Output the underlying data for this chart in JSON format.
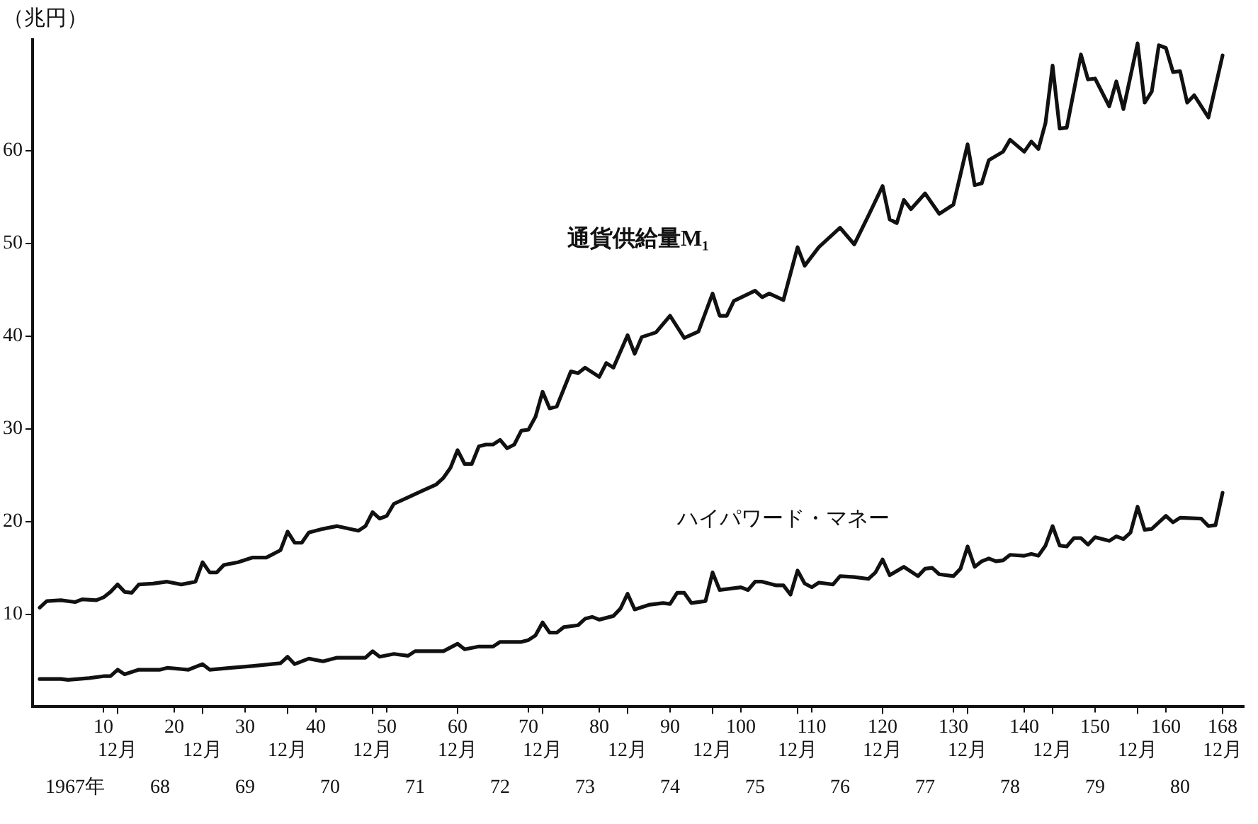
{
  "chart_data": {
    "type": "line",
    "ylabel": "（兆円）",
    "xlim": [
      0,
      171
    ],
    "ylim": [
      0,
      72
    ],
    "xticks": [
      10,
      20,
      30,
      40,
      50,
      60,
      70,
      80,
      90,
      100,
      110,
      120,
      130,
      140,
      150,
      160,
      168
    ],
    "x2lim": [
      "1966-12",
      "1981-03"
    ],
    "x2ticks": [
      {
        "value": "1967-12",
        "label": "12月"
      },
      {
        "value": "1968-12",
        "label": "12月"
      },
      {
        "value": "1969-12",
        "label": "12月"
      },
      {
        "value": "1970-12",
        "label": "12月"
      },
      {
        "value": "1971-12",
        "label": "12月"
      },
      {
        "value": "1972-12",
        "label": "12月"
      },
      {
        "value": "1973-12",
        "label": "12月"
      },
      {
        "value": "1974-12",
        "label": "12月"
      },
      {
        "value": "1975-12",
        "label": "12月"
      },
      {
        "value": "1976-12",
        "label": "12月"
      },
      {
        "value": "1977-12",
        "label": "12月"
      },
      {
        "value": "1978-12",
        "label": "12月"
      },
      {
        "value": "1979-12",
        "label": "12月"
      },
      {
        "value": "1980-12",
        "label": "12月"
      }
    ],
    "annotations": [
      "1967年",
      "68",
      "69",
      "70",
      "71",
      "72",
      "73",
      "74",
      "75",
      "76",
      "77",
      "78",
      "79",
      "80"
    ],
    "yticks": [
      10,
      20,
      30,
      40,
      50,
      60
    ],
    "grid": false,
    "legend": false,
    "marker": "none",
    "line_style": "solid",
    "series": [
      {
        "name": "通貨供給量M₁",
        "color": "#111111",
        "x": [
          1,
          2,
          4,
          6,
          7,
          9,
          10,
          11,
          12,
          13,
          14,
          15,
          17,
          19,
          21,
          23,
          24,
          25,
          26,
          27,
          29,
          31,
          33,
          35,
          36,
          37,
          38,
          39,
          41,
          43,
          46,
          47,
          48,
          49,
          50,
          51,
          53,
          55,
          57,
          58,
          59,
          60,
          61,
          62,
          63,
          64,
          65,
          66,
          67,
          68,
          69,
          70,
          71,
          72,
          73,
          74,
          76,
          77,
          78,
          80,
          81,
          82,
          84,
          85,
          86,
          88,
          90,
          92,
          94,
          96,
          97,
          98,
          99,
          102,
          103,
          104,
          106,
          108,
          109,
          111,
          114,
          116,
          118,
          120,
          121,
          122,
          123,
          124,
          126,
          128,
          130,
          132,
          133,
          134,
          135,
          137,
          138,
          140,
          141,
          142,
          143,
          144,
          145,
          146,
          148,
          149,
          150,
          152,
          153,
          154,
          156,
          157,
          158,
          159,
          160,
          161,
          162,
          163,
          164,
          166,
          168
        ],
        "values": [
          10.7,
          11.4,
          11.5,
          11.3,
          11.6,
          11.5,
          11.8,
          12.4,
          13.2,
          12.4,
          12.3,
          13.2,
          13.3,
          13.5,
          13.2,
          13.5,
          15.6,
          14.5,
          14.5,
          15.3,
          15.6,
          16.1,
          16.1,
          16.9,
          18.9,
          17.7,
          17.7,
          18.8,
          19.2,
          19.5,
          19.0,
          19.5,
          21.0,
          20.3,
          20.6,
          21.9,
          22.6,
          23.3,
          24.0,
          24.7,
          25.8,
          27.7,
          26.2,
          26.2,
          28.1,
          28.3,
          28.3,
          28.8,
          27.9,
          28.3,
          29.8,
          29.9,
          31.3,
          34.0,
          32.2,
          32.4,
          36.2,
          36.0,
          36.6,
          35.6,
          37.1,
          36.6,
          40.1,
          38.1,
          39.9,
          40.4,
          42.2,
          39.8,
          40.5,
          44.6,
          42.2,
          42.2,
          43.8,
          44.9,
          44.2,
          44.6,
          43.9,
          49.6,
          47.6,
          49.6,
          51.7,
          49.9,
          53.0,
          56.2,
          52.6,
          52.2,
          54.7,
          53.7,
          55.4,
          53.2,
          54.2,
          60.7,
          56.3,
          56.5,
          59.0,
          59.9,
          61.2,
          59.9,
          61.0,
          60.2,
          63.0,
          69.2,
          62.4,
          62.5,
          70.4,
          67.7,
          67.8,
          64.8,
          67.5,
          64.5,
          71.6,
          65.2,
          66.4,
          71.4,
          71.1,
          68.5,
          68.6,
          65.2,
          66.0,
          63.6,
          70.3
        ]
      },
      {
        "name": "ハイパワード・マネー",
        "color": "#111111",
        "x": [
          1,
          4,
          5,
          8,
          10,
          11,
          12,
          13,
          15,
          18,
          19,
          22,
          24,
          25,
          28,
          31,
          35,
          36,
          37,
          39,
          41,
          43,
          47,
          48,
          49,
          51,
          53,
          54,
          58,
          60,
          61,
          63,
          65,
          66,
          69,
          70,
          71,
          72,
          73,
          74,
          75,
          77,
          78,
          79,
          80,
          82,
          83,
          84,
          85,
          87,
          89,
          90,
          91,
          92,
          93,
          95,
          96,
          97,
          100,
          101,
          102,
          103,
          105,
          106,
          107,
          108,
          109,
          110,
          111,
          113,
          114,
          116,
          118,
          119,
          120,
          121,
          123,
          125,
          126,
          127,
          128,
          130,
          131,
          132,
          133,
          134,
          135,
          136,
          137,
          138,
          140,
          141,
          142,
          143,
          144,
          145,
          146,
          147,
          148,
          149,
          150,
          152,
          153,
          154,
          155,
          156,
          157,
          158,
          159,
          160,
          161,
          162,
          165,
          166,
          167,
          168
        ],
        "values": [
          3.0,
          3.0,
          2.9,
          3.1,
          3.3,
          3.3,
          4.0,
          3.5,
          4.0,
          4.0,
          4.2,
          4.0,
          4.6,
          4.0,
          4.2,
          4.4,
          4.7,
          5.4,
          4.6,
          5.2,
          4.9,
          5.3,
          5.3,
          6.0,
          5.4,
          5.7,
          5.5,
          6.0,
          6.0,
          6.8,
          6.2,
          6.5,
          6.5,
          7.0,
          7.0,
          7.2,
          7.7,
          9.1,
          8.0,
          8.0,
          8.6,
          8.8,
          9.5,
          9.7,
          9.4,
          9.8,
          10.6,
          12.2,
          10.5,
          11.0,
          11.2,
          11.1,
          12.3,
          12.3,
          11.2,
          11.4,
          14.5,
          12.6,
          12.9,
          12.6,
          13.5,
          13.5,
          13.1,
          13.1,
          12.1,
          14.7,
          13.3,
          12.9,
          13.4,
          13.2,
          14.1,
          14.0,
          13.8,
          14.5,
          15.9,
          14.2,
          15.1,
          14.1,
          14.9,
          15.0,
          14.3,
          14.1,
          14.9,
          17.3,
          15.1,
          15.7,
          16.0,
          15.7,
          15.8,
          16.4,
          16.3,
          16.5,
          16.3,
          17.4,
          19.5,
          17.4,
          17.3,
          18.2,
          18.2,
          17.5,
          18.3,
          17.9,
          18.4,
          18.1,
          18.8,
          21.6,
          19.1,
          19.2,
          19.9,
          20.6,
          19.9,
          20.4,
          20.3,
          19.5,
          19.6,
          23.1
        ]
      }
    ]
  }
}
